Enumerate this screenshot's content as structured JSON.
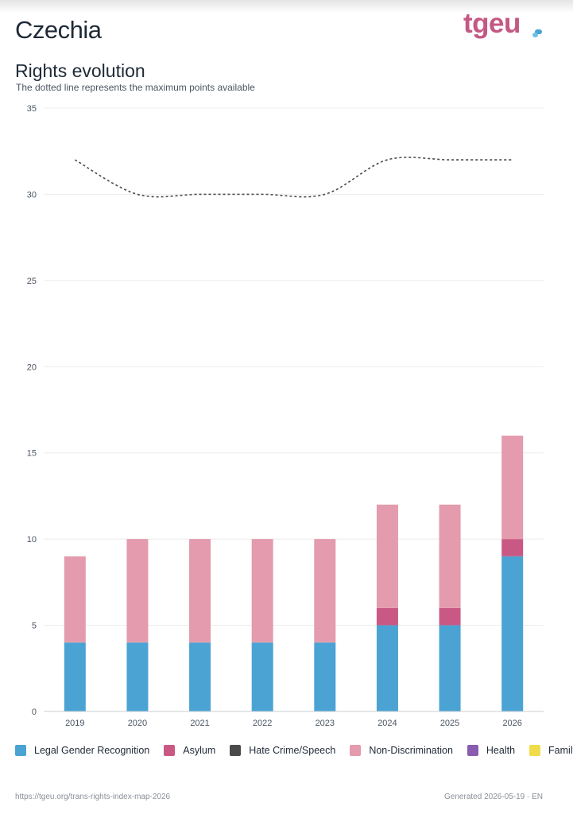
{
  "header": {
    "country": "Czechia",
    "logo_text": "tgeu",
    "logo_icon": "tgeu-logo-mark-icon"
  },
  "section": {
    "title": "Rights evolution",
    "subtitle": "The dotted line represents the maximum points available"
  },
  "legend": [
    {
      "label": "Legal Gender Recognition",
      "color": "#4aa3d3"
    },
    {
      "label": "Asylum",
      "color": "#c95984"
    },
    {
      "label": "Hate Crime/Speech",
      "color": "#4a4a4a"
    },
    {
      "label": "Non-Discrimination",
      "color": "#e39bad"
    },
    {
      "label": "Health",
      "color": "#8a5cb0"
    },
    {
      "label": "Family",
      "color": "#f0dc4b"
    }
  ],
  "footer": {
    "url": "https://tgeu.org/trans-rights-index-map-2026",
    "generated": "Generated 2026-05-19 · EN"
  },
  "chart_data": {
    "type": "bar",
    "stacked": true,
    "categories": [
      "2019",
      "2020",
      "2021",
      "2022",
      "2023",
      "2024",
      "2025",
      "2026"
    ],
    "series": [
      {
        "name": "Legal Gender Recognition",
        "color": "#4aa3d3",
        "values": [
          4,
          4,
          4,
          4,
          4,
          5,
          5,
          9
        ]
      },
      {
        "name": "Asylum",
        "color": "#c95984",
        "values": [
          0,
          0,
          0,
          0,
          0,
          1,
          1,
          1
        ]
      },
      {
        "name": "Hate Crime/Speech",
        "color": "#4a4a4a",
        "values": [
          0,
          0,
          0,
          0,
          0,
          0,
          0,
          0
        ]
      },
      {
        "name": "Non-Discrimination",
        "color": "#e39bad",
        "values": [
          5,
          6,
          6,
          6,
          6,
          6,
          6,
          6
        ]
      },
      {
        "name": "Health",
        "color": "#8a5cb0",
        "values": [
          0,
          0,
          0,
          0,
          0,
          0,
          0,
          0
        ]
      },
      {
        "name": "Family",
        "color": "#f0dc4b",
        "values": [
          0,
          0,
          0,
          0,
          0,
          0,
          0,
          0
        ]
      }
    ],
    "max_points_line": {
      "style": "dotted",
      "color": "#4a4a4a",
      "values": [
        32,
        30,
        30,
        30,
        30,
        32,
        32,
        32
      ]
    },
    "ylim": [
      0,
      35
    ],
    "yticks": [
      0,
      5,
      10,
      15,
      20,
      25,
      30,
      35
    ],
    "grid": true,
    "legend_position": "bottom"
  }
}
